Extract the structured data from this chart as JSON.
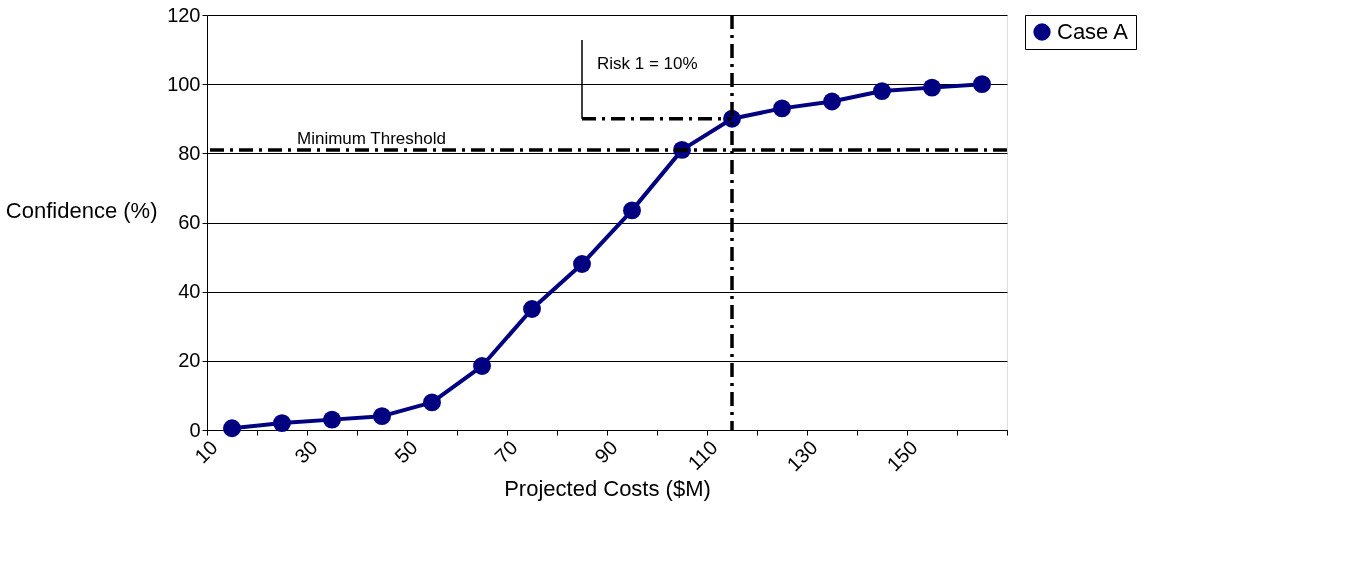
{
  "chart_data": {
    "type": "line",
    "xlabel": "Projected Costs ($M)",
    "ylabel": "Confidence (%)",
    "x": [
      15,
      25,
      35,
      45,
      55,
      65,
      75,
      85,
      95,
      105,
      115,
      125,
      135,
      145,
      155,
      165
    ],
    "series": [
      {
        "name": "Case A",
        "color": "#000080",
        "marker": "circle",
        "line_style": "solid",
        "values": [
          0.5,
          2,
          3,
          4,
          8,
          18.5,
          35,
          48,
          63.5,
          81,
          90,
          93,
          95,
          98,
          99,
          100
        ]
      },
      {
        "type": "line",
        "color": "#000000",
        "marker": "none",
        "line_style": "dashed",
        "x": [
          85,
          115
        ],
        "values": [
          90,
          90
        ]
      }
    ],
    "xlim": [
      10,
      170
    ],
    "xticks": [
      10,
      {
        "value": 20,
        "label": null
      },
      30,
      {
        "value": 40,
        "label": null
      },
      50,
      {
        "value": 60,
        "label": null
      },
      70,
      {
        "value": 80,
        "label": null
      },
      90,
      {
        "value": 100,
        "label": null
      },
      110,
      {
        "value": 120,
        "label": null
      },
      130,
      {
        "value": 140,
        "label": null
      },
      150,
      {
        "value": 160,
        "label": null
      },
      {
        "value": 170,
        "label": null
      }
    ],
    "ylim": [
      0,
      120
    ],
    "yticks": [
      0,
      20,
      40,
      60,
      80,
      100,
      120
    ],
    "grid": "y",
    "legend": "right",
    "ref_lines": [
      {
        "axis": "y",
        "value": 81,
        "label": "Minimum Threshold",
        "color": "#000000",
        "line_style": "dashed"
      },
      {
        "axis": "x",
        "value": 115,
        "color": "#000000",
        "line_style": "dashed"
      }
    ],
    "annotations": [
      {
        "text": "Risk 1 = 10%",
        "x": 85,
        "y": 90
      }
    ]
  }
}
